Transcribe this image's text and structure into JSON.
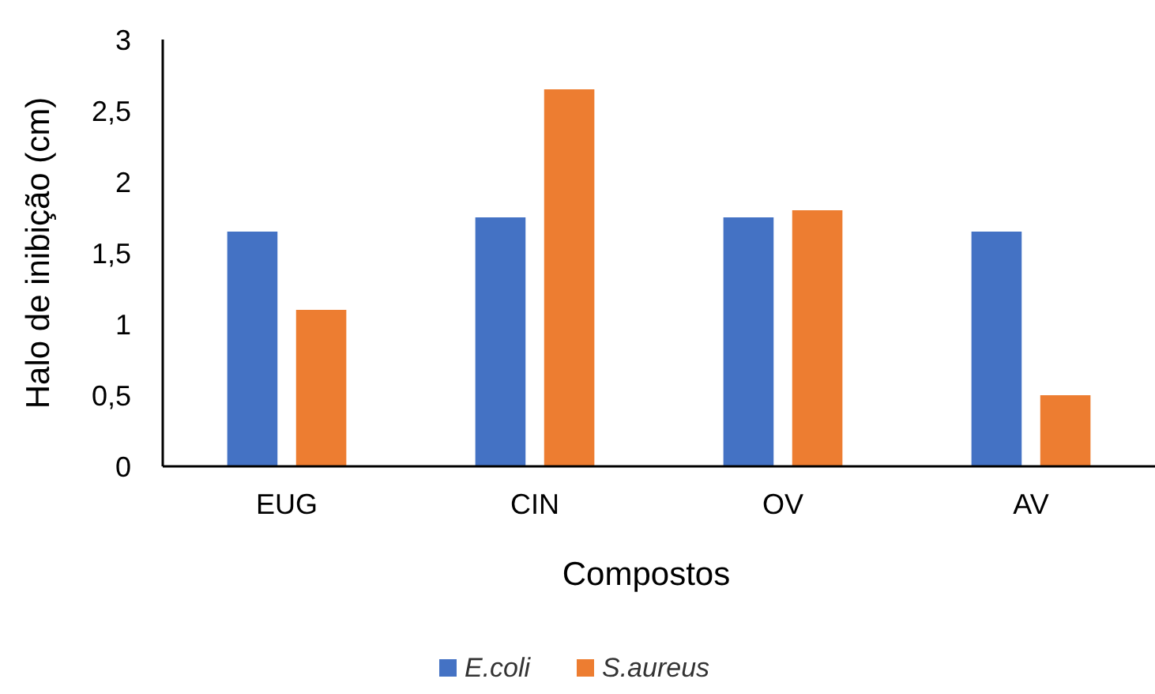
{
  "chart_data": {
    "type": "bar",
    "xlabel": "Compostos",
    "ylabel": "Halo de inibição (cm)",
    "categories": [
      "EUG",
      "CIN",
      "OV",
      "AV"
    ],
    "series": [
      {
        "name": "E.coli",
        "color": "#4472c4",
        "values": [
          1.65,
          1.75,
          1.75,
          1.65
        ]
      },
      {
        "name": "S.aureus",
        "color": "#ed7d31",
        "values": [
          1.1,
          2.65,
          1.8,
          0.5
        ]
      }
    ],
    "ylim": [
      0,
      3
    ],
    "yticks": [
      0,
      {
        "value": 0.5,
        "label": "0,5"
      },
      1,
      {
        "value": 1.5,
        "label": "1,5"
      },
      2,
      {
        "value": 2.5,
        "label": "2,5"
      },
      3
    ],
    "grid": false,
    "legend": "bottom"
  }
}
